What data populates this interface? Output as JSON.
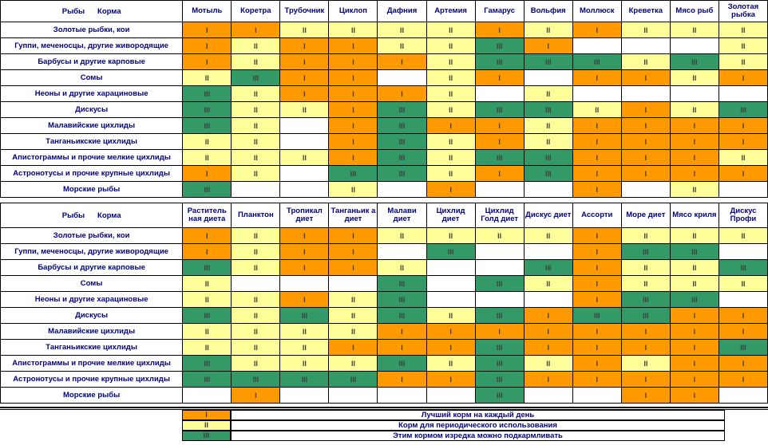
{
  "colors": {
    "best_daily": "#ff9900",
    "periodic": "#ffff99",
    "occasional": "#339966",
    "none": "#ffffff",
    "text": "#000080"
  },
  "table1": {
    "corner_fish": "Рыбы",
    "corner_food": "Корма",
    "foods": [
      "Мотыль",
      "Коретра",
      "Трубочник",
      "Циклоп",
      "Дафния",
      "Артемия",
      "Гамарус",
      "Вольфия",
      "Моллюск",
      "Креветка",
      "Мясо рыб",
      "Золотая рыбка"
    ],
    "rows": [
      {
        "fish": "Золотые рыбки, кои",
        "cells": [
          "I",
          "I",
          "II",
          "II",
          "II",
          "II",
          "I",
          "II",
          "I",
          "II",
          "II",
          "II"
        ]
      },
      {
        "fish": "Гуппи, меченосцы, другие живородящие",
        "cells": [
          "I",
          "II",
          "I",
          "I",
          "II",
          "II",
          "III",
          "I",
          "",
          "",
          "",
          "II"
        ]
      },
      {
        "fish": "Барбусы  и другие карповые",
        "cells": [
          "I",
          "II",
          "I",
          "I",
          "I",
          "II",
          "III",
          "III",
          "III",
          "II",
          "III",
          "II"
        ]
      },
      {
        "fish": "Сомы",
        "cells": [
          "II",
          "III",
          "I",
          "I",
          "",
          "II",
          "I",
          "",
          "I",
          "I",
          "II",
          "I"
        ]
      },
      {
        "fish": "Неоны и другие харациновые",
        "cells": [
          "III",
          "II",
          "I",
          "I",
          "I",
          "II",
          "",
          "II",
          "",
          "",
          "",
          ""
        ]
      },
      {
        "fish": "Дискусы",
        "cells": [
          "III",
          "II",
          "II",
          "I",
          "III",
          "II",
          "III",
          "III",
          "II",
          "I",
          "II",
          "III"
        ]
      },
      {
        "fish": "Малавийские цихлиды",
        "cells": [
          "III",
          "II",
          "",
          "I",
          "III",
          "I",
          "I",
          "II",
          "I",
          "I",
          "I",
          "I"
        ]
      },
      {
        "fish": "Танганьикские цихлиды",
        "cells": [
          "II",
          "II",
          "",
          "I",
          "III",
          "II",
          "I",
          "II",
          "I",
          "I",
          "I",
          "I"
        ]
      },
      {
        "fish": "Апистограммы и прочие мелкие цихлиды",
        "cells": [
          "II",
          "II",
          "II",
          "I",
          "III",
          "II",
          "III",
          "III",
          "I",
          "I",
          "I",
          "II"
        ]
      },
      {
        "fish": "Астронотусы и прочие крупные цихлиды",
        "cells": [
          "I",
          "II",
          "",
          "III",
          "III",
          "II",
          "I",
          "III",
          "I",
          "I",
          "I",
          "I"
        ]
      },
      {
        "fish": "Морские рыбы",
        "cells": [
          "III",
          "",
          "",
          "II",
          "",
          "I",
          "",
          "",
          "I",
          "",
          "II",
          ""
        ]
      }
    ]
  },
  "table2": {
    "corner_fish": "Рыбы",
    "corner_food": "Корма",
    "foods": [
      "Раститель ная диета",
      "Планктон",
      "Тропикал диет",
      "Танганьик а диет",
      "Малави диет",
      "Цихлид диет",
      "Цихлид Голд диет",
      "Дискус диет",
      "Ассорти",
      "Море диет",
      "Мясо криля",
      "Дискус Профи"
    ],
    "rows": [
      {
        "fish": "Золотые рыбки, кои",
        "cells": [
          "I",
          "II",
          "I",
          "I",
          "II",
          "II",
          "II",
          "II",
          "I",
          "II",
          "II",
          "II"
        ]
      },
      {
        "fish": "Гуппи, меченосцы, другие живородящие",
        "cells": [
          "I",
          "II",
          "I",
          "I",
          "",
          "III",
          "",
          "",
          "I",
          "III",
          "III",
          ""
        ]
      },
      {
        "fish": "Барбусы  и другие карповые",
        "cells": [
          "III",
          "II",
          "I",
          "I",
          "II",
          "",
          "",
          "III",
          "I",
          "II",
          "II",
          "III"
        ]
      },
      {
        "fish": "Сомы",
        "cells": [
          "II",
          "",
          "",
          "",
          "III",
          "",
          "III",
          "II",
          "I",
          "II",
          "II",
          "II"
        ]
      },
      {
        "fish": "Неоны и другие харациновые",
        "cells": [
          "II",
          "II",
          "I",
          "II",
          "III",
          "",
          "",
          "",
          "I",
          "III",
          "III",
          ""
        ]
      },
      {
        "fish": "Дискусы",
        "cells": [
          "III",
          "II",
          "III",
          "II",
          "III",
          "II",
          "III",
          "I",
          "III",
          "III",
          "I",
          "I"
        ]
      },
      {
        "fish": "Малавийские цихлиды",
        "cells": [
          "II",
          "II",
          "II",
          "II",
          "I",
          "I",
          "I",
          "I",
          "I",
          "I",
          "I",
          "I"
        ]
      },
      {
        "fish": "Танганьикские цихлиды",
        "cells": [
          "II",
          "II",
          "II",
          "I",
          "I",
          "I",
          "III",
          "I",
          "I",
          "I",
          "I",
          "III"
        ]
      },
      {
        "fish": "Апистограммы и прочие мелкие цихлиды",
        "cells": [
          "III",
          "II",
          "II",
          "II",
          "III",
          "II",
          "III",
          "II",
          "I",
          "II",
          "I",
          "I"
        ]
      },
      {
        "fish": "Астронотусы и прочие крупные цихлиды",
        "cells": [
          "III",
          "III",
          "III",
          "III",
          "I",
          "I",
          "III",
          "I",
          "I",
          "I",
          "I",
          "I"
        ]
      },
      {
        "fish": "Морские рыбы",
        "cells": [
          "",
          "I",
          "",
          "",
          "",
          "",
          "III",
          "",
          "",
          "I",
          "I",
          ""
        ]
      }
    ]
  },
  "legend": [
    {
      "mark": "I",
      "text": "Лучший корм на каждый день"
    },
    {
      "mark": "II",
      "text": "Корм для периодического использования"
    },
    {
      "mark": "III",
      "text": "Этим кормом изредка можно подкармливать"
    }
  ]
}
